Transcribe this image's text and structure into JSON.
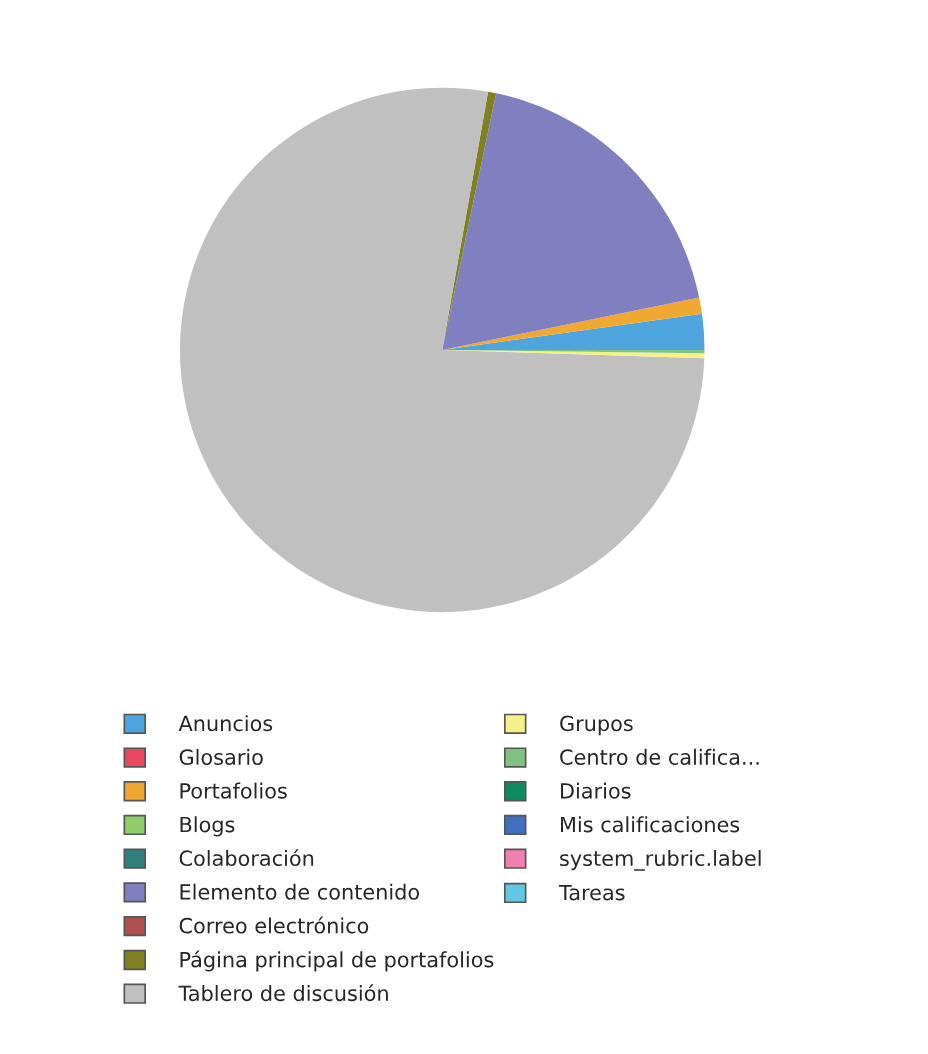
{
  "chart_data": {
    "type": "pie",
    "categories": [
      "Anuncios",
      "Glosario",
      "Portafolios",
      "Blogs",
      "Colaboración",
      "Elemento de contenido",
      "Correo electrónico",
      "Página principal de portafolios",
      "Tablero de discusión",
      "Grupos",
      "Centro de califica...",
      "Diarios",
      "Mis calificaciones",
      "system_rubric.label",
      "Tareas"
    ],
    "values": [
      2.2,
      0,
      1.0,
      0,
      0,
      18.5,
      0,
      0.5,
      77.3,
      0.3,
      0.2,
      0,
      0,
      0,
      0
    ],
    "colors": [
      "#4ea5dd",
      "#e8475f",
      "#f0a830",
      "#8fce6a",
      "#2f7f7f",
      "#8080c0",
      "#b05050",
      "#808020",
      "#c0c0c0",
      "#f5f08a",
      "#80c080",
      "#108a60",
      "#4070c0",
      "#f080b0",
      "#60c8e0"
    ],
    "legend": "bottom"
  }
}
